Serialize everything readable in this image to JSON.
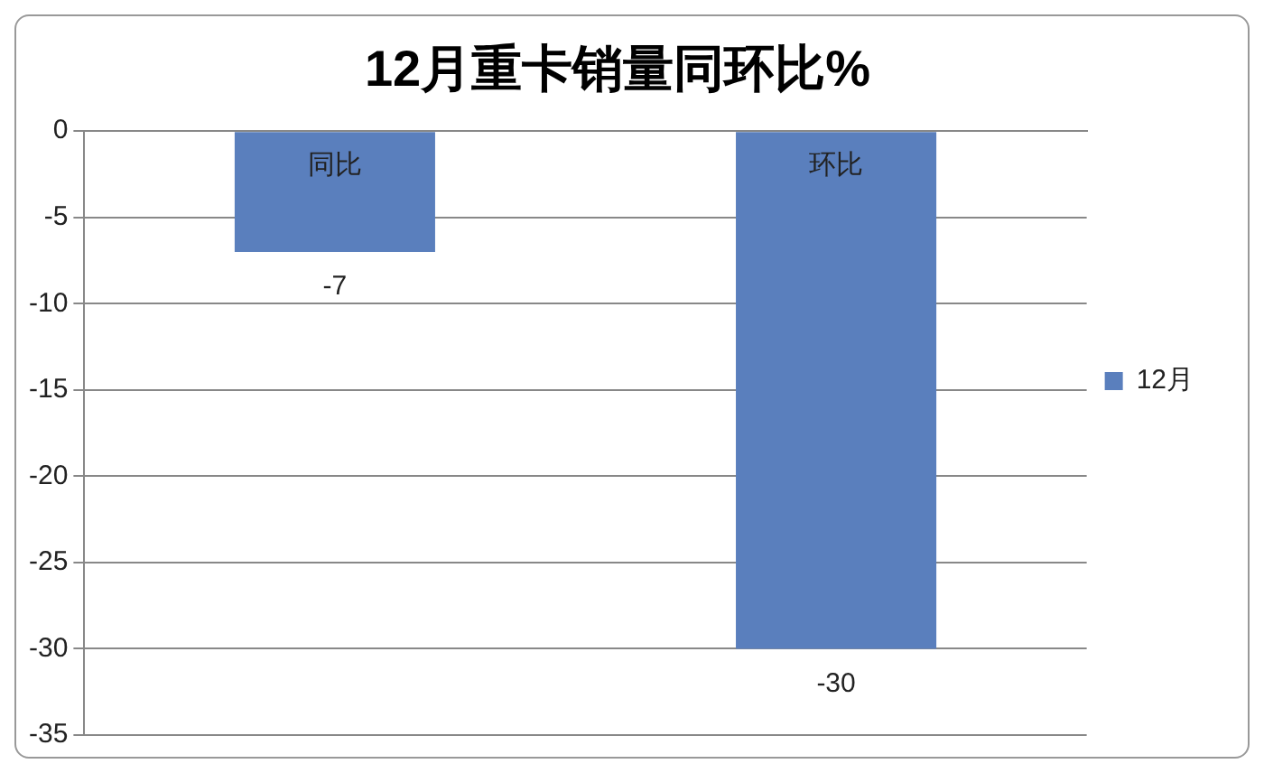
{
  "chart_data": {
    "type": "bar",
    "title": "12月重卡销量同环比%",
    "categories": [
      "同比",
      "环比"
    ],
    "series": [
      {
        "name": "12月",
        "color": "#5a7fbd",
        "values": [
          -7,
          -30
        ]
      }
    ],
    "ylim": [
      -35,
      0
    ],
    "yticks": [
      -35,
      -30,
      -25,
      -20,
      -15,
      -10,
      -5,
      0
    ],
    "grid": "y",
    "legend": "right",
    "data_labels": true
  }
}
